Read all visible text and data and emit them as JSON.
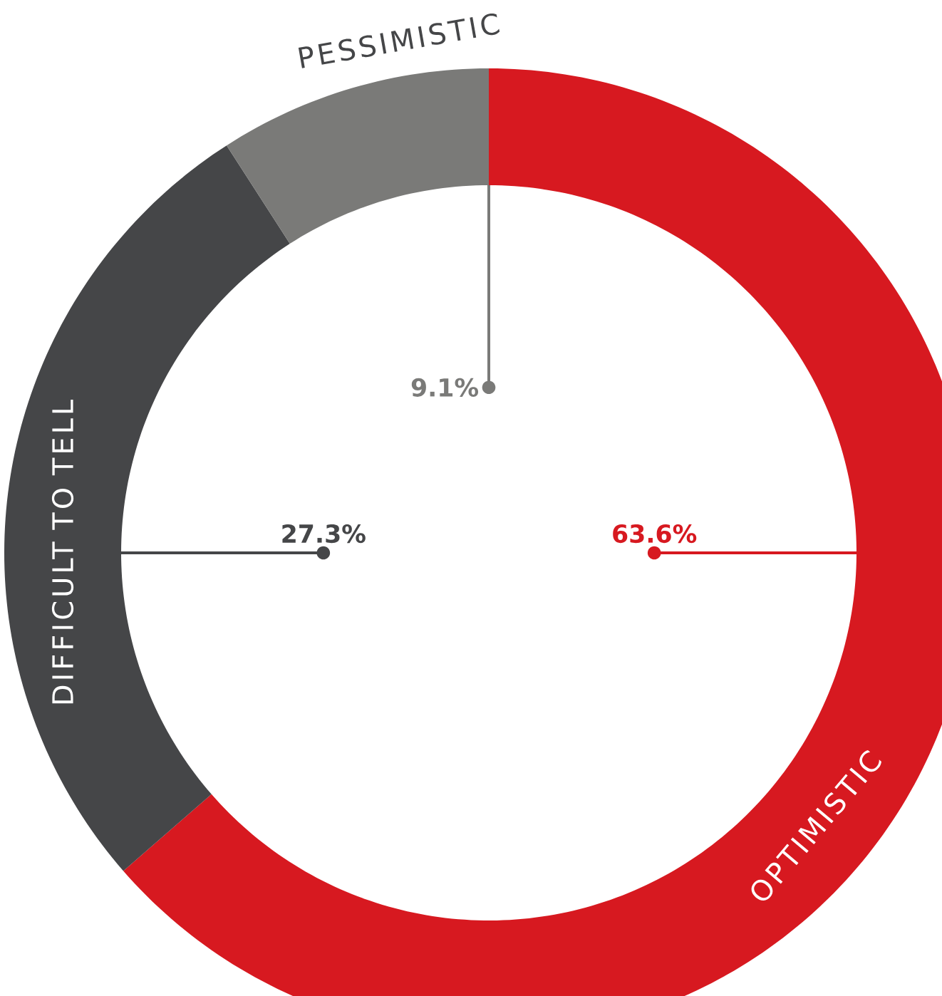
{
  "chart_data": {
    "type": "donut",
    "categories": [
      "OPTIMISTIC",
      "DIFFICULT TO TELL",
      "PESSIMISTIC"
    ],
    "values": [
      63.6,
      27.3,
      9.1
    ],
    "colors": [
      "#d71920",
      "#454648",
      "#7a7a78"
    ],
    "value_labels": [
      "63.6%",
      "27.3%",
      "9.1%"
    ]
  }
}
